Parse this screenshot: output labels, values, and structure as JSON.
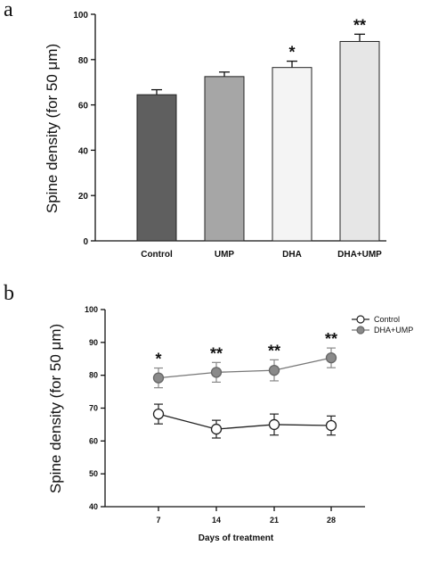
{
  "chart_data": [
    {
      "panel": "a",
      "type": "bar",
      "ylabel": "Spine density (for 50 μm)",
      "xlabel": "",
      "ylim": [
        0,
        100
      ],
      "yticks": [
        "0",
        "20",
        "40",
        "60",
        "80",
        "100"
      ],
      "categories": [
        "Control",
        "UMP",
        "DHA",
        "DHA+UMP"
      ],
      "values": [
        64.5,
        72.5,
        76.5,
        88
      ],
      "errors": [
        2.2,
        2.0,
        2.8,
        3.2
      ],
      "annotations": [
        "",
        "",
        "*",
        "**"
      ],
      "bar_colors": [
        "#5f5f5f",
        "#a6a6a6",
        "#f4f4f4",
        "#e6e6e6"
      ]
    },
    {
      "panel": "b",
      "type": "line",
      "ylabel": "Spine density (for 50 μm)",
      "xlabel": "Days of treatment",
      "ylim": [
        40,
        100
      ],
      "yticks": [
        "40",
        "50",
        "60",
        "70",
        "80",
        "90",
        "100"
      ],
      "categories": [
        "7",
        "14",
        "21",
        "28"
      ],
      "series": [
        {
          "name": "Control",
          "values": [
            68.2,
            63.6,
            65.0,
            64.7
          ],
          "errors": [
            3.0,
            2.7,
            3.2,
            2.9
          ],
          "marker_fill": "#ffffff"
        },
        {
          "name": "DHA+UMP",
          "values": [
            79.2,
            80.9,
            81.5,
            85.3
          ],
          "errors": [
            3.0,
            3.0,
            3.2,
            3.0
          ],
          "marker_fill": "#8a8a8a"
        }
      ],
      "annotations": [
        "*",
        "**",
        "**",
        "**"
      ],
      "legend_position": "top-right"
    }
  ]
}
